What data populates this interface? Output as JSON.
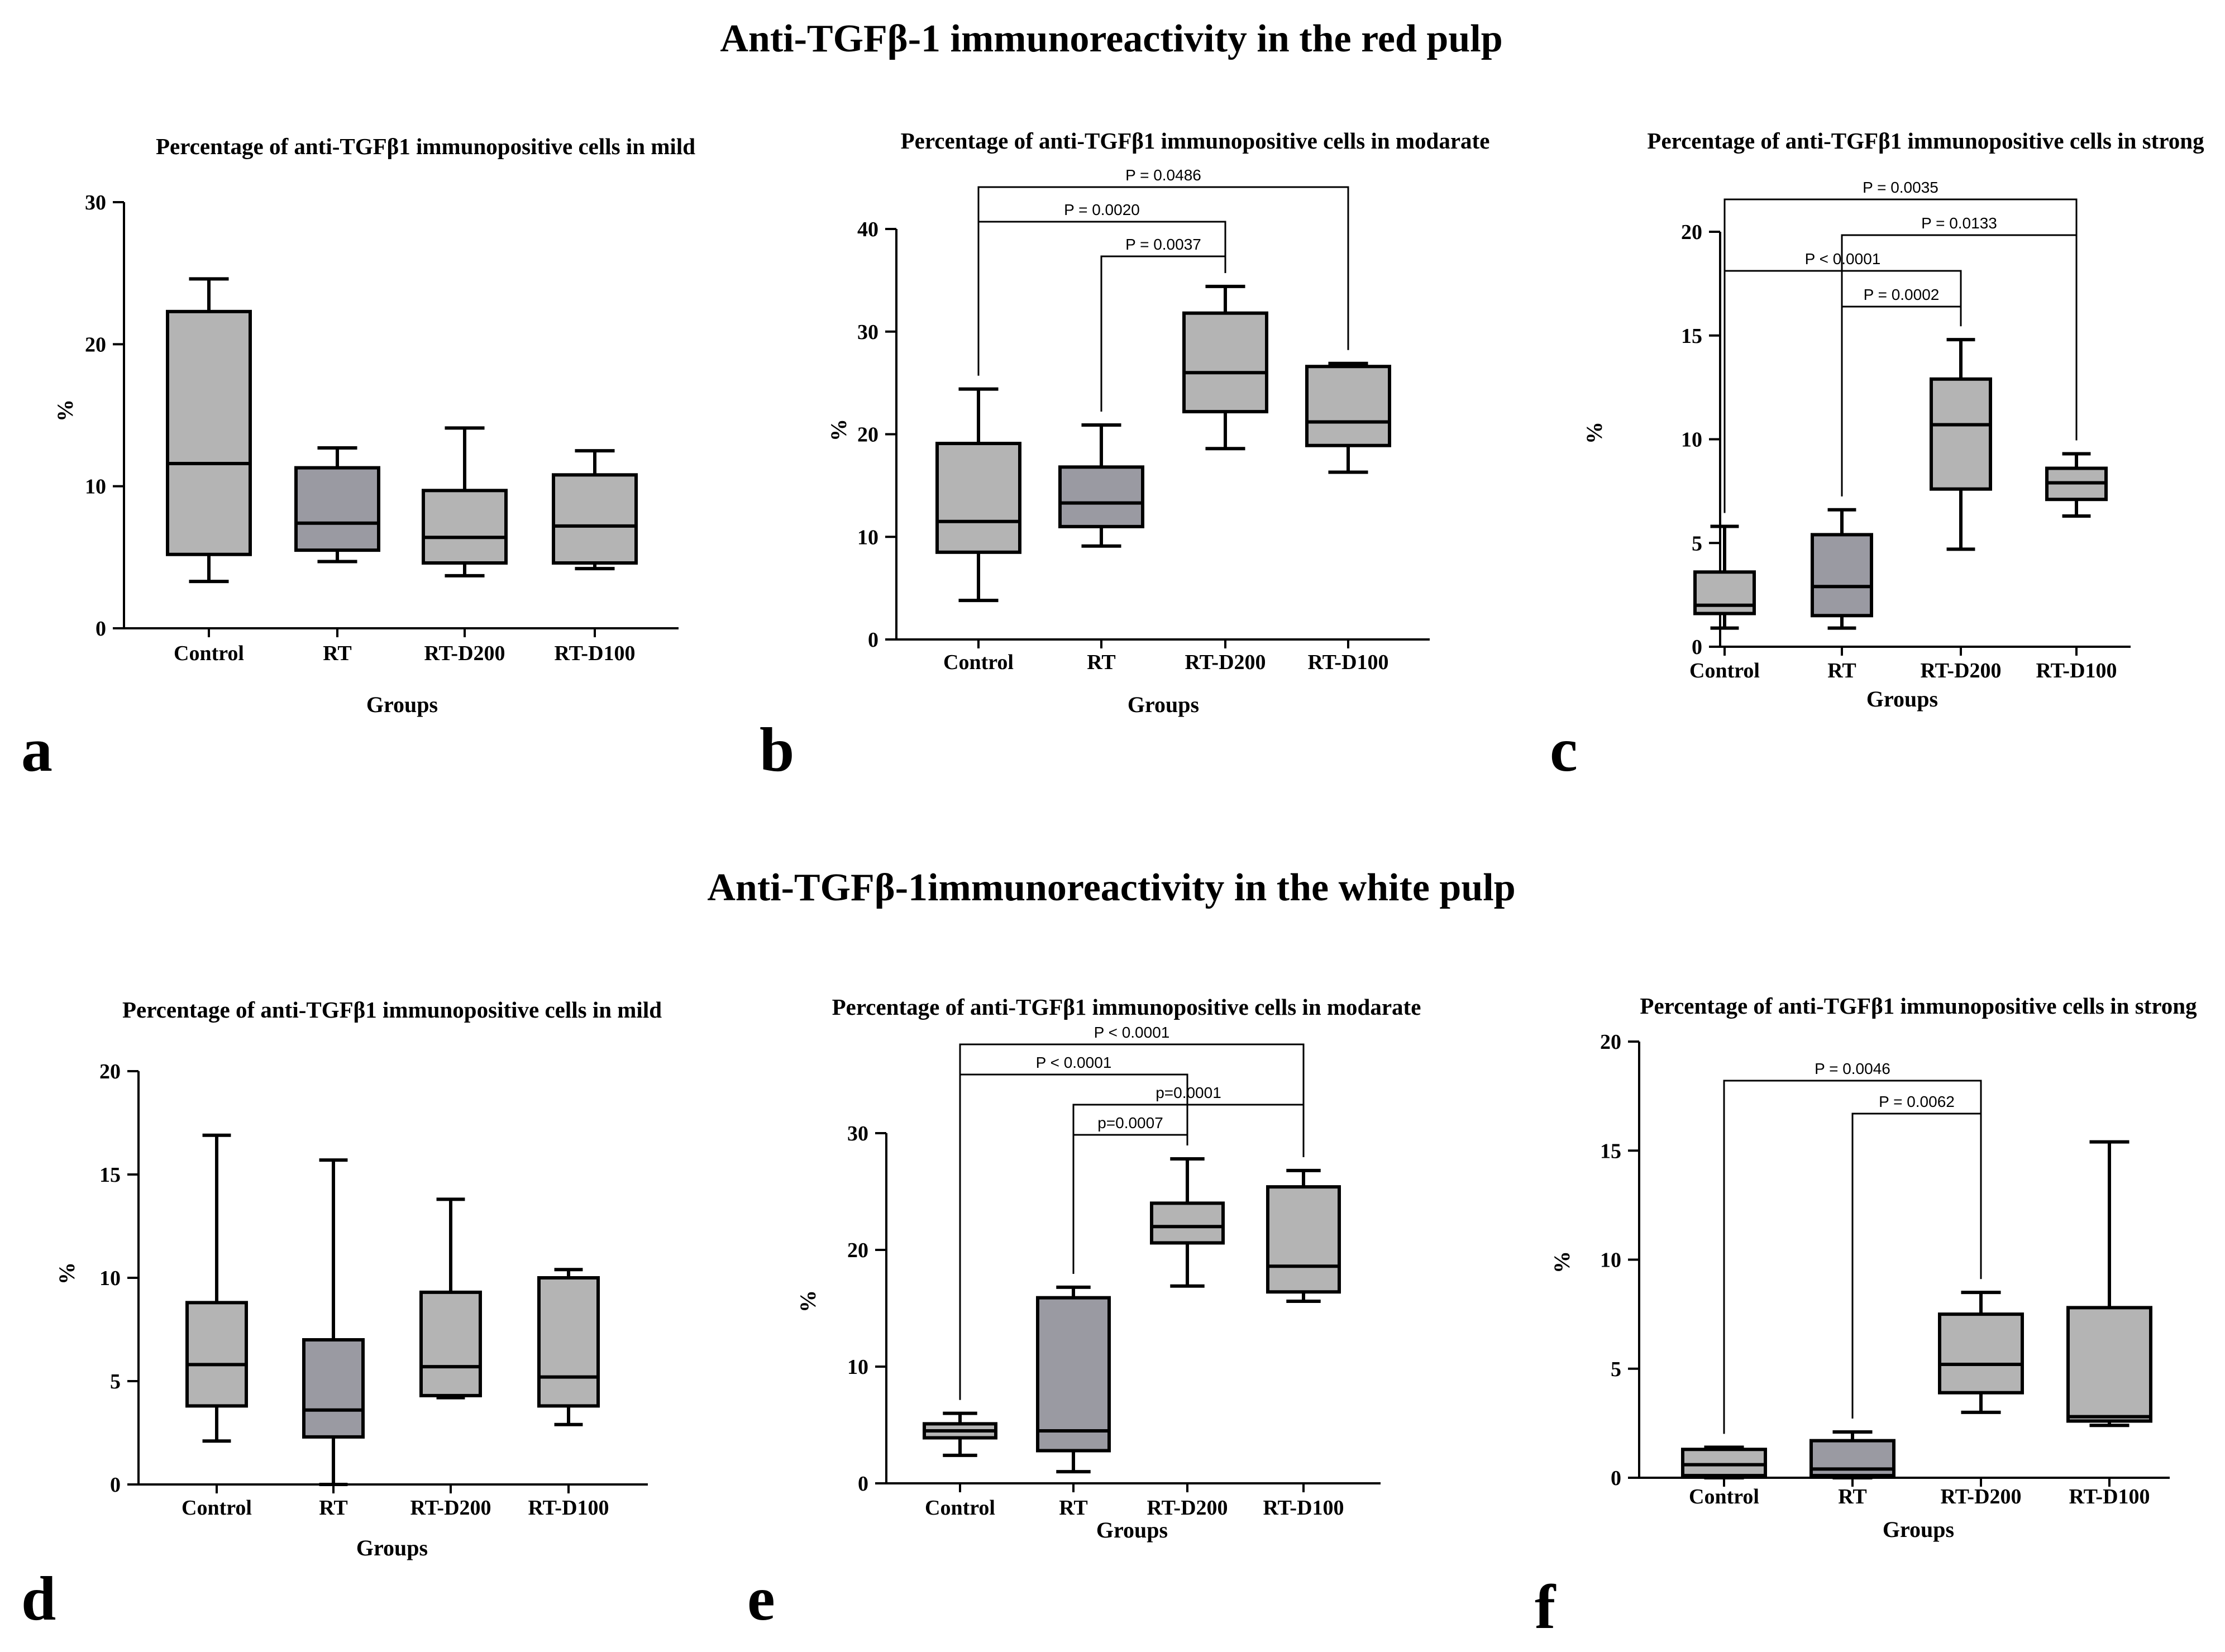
{
  "figure": {
    "section_titles": [
      "Anti-TGFβ-1 immunoreactivity in the red pulp",
      "Anti-TGFβ-1immunoreactivity in the white pulp"
    ]
  },
  "colors": {
    "box_light": "#b4b4b4",
    "box_dark": "#9a9aa2",
    "stroke": "#000000"
  },
  "chart_data": [
    {
      "panel": "a",
      "type": "box",
      "title": "Percentage of anti-TGFβ1 immunopositive cells in mild",
      "xlabel": "Groups",
      "ylabel": "%",
      "ylim": [
        0,
        30
      ],
      "yticks": [
        0,
        10,
        20,
        30
      ],
      "categories": [
        "Control",
        "RT",
        "RT-D200",
        "RT-D100"
      ],
      "boxes": [
        {
          "min": 3.3,
          "q1": 5.2,
          "median": 11.6,
          "q3": 22.3,
          "max": 24.6
        },
        {
          "min": 4.7,
          "q1": 5.5,
          "median": 7.4,
          "q3": 11.3,
          "max": 12.7
        },
        {
          "min": 3.7,
          "q1": 4.6,
          "median": 6.4,
          "q3": 9.7,
          "max": 14.1
        },
        {
          "min": 4.2,
          "q1": 4.6,
          "median": 7.2,
          "q3": 10.8,
          "max": 12.5
        }
      ],
      "comparisons": []
    },
    {
      "panel": "b",
      "type": "box",
      "title": "Percentage of anti-TGFβ1 immunopositive cells in modarate",
      "xlabel": "Groups",
      "ylabel": "%",
      "ylim": [
        0,
        40
      ],
      "yticks": [
        0,
        10,
        20,
        30,
        40
      ],
      "categories": [
        "Control",
        "RT",
        "RT-D200",
        "RT-D100"
      ],
      "boxes": [
        {
          "min": 3.8,
          "q1": 8.5,
          "median": 11.5,
          "q3": 19.1,
          "max": 24.4
        },
        {
          "min": 9.1,
          "q1": 11.0,
          "median": 13.3,
          "q3": 16.8,
          "max": 20.9
        },
        {
          "min": 18.6,
          "q1": 22.2,
          "median": 26.0,
          "q3": 31.8,
          "max": 34.4
        },
        {
          "min": 16.3,
          "q1": 18.9,
          "median": 21.2,
          "q3": 26.6,
          "max": 26.9
        }
      ],
      "comparisons": [
        {
          "from": 0,
          "to": 3,
          "label": "P = 0.0486"
        },
        {
          "from": 0,
          "to": 2,
          "label": "P = 0.0020"
        },
        {
          "from": 1,
          "to": 2,
          "label": "P = 0.0037"
        }
      ]
    },
    {
      "panel": "c",
      "type": "box",
      "title": "Percentage of anti-TGFβ1 immunopositive cells in strong",
      "xlabel": "Groups",
      "ylabel": "%",
      "ylim": [
        0,
        20
      ],
      "yticks": [
        0,
        5,
        10,
        15,
        20
      ],
      "categories": [
        "Control",
        "RT",
        "RT-D200",
        "RT-D100"
      ],
      "boxes": [
        {
          "min": 0.9,
          "q1": 1.6,
          "median": 2.0,
          "q3": 3.6,
          "max": 5.8
        },
        {
          "min": 0.9,
          "q1": 1.5,
          "median": 2.9,
          "q3": 5.4,
          "max": 6.6
        },
        {
          "min": 4.7,
          "q1": 7.6,
          "median": 10.7,
          "q3": 12.9,
          "max": 14.8
        },
        {
          "min": 6.3,
          "q1": 7.1,
          "median": 7.9,
          "q3": 8.6,
          "max": 9.3
        }
      ],
      "comparisons": [
        {
          "from": 0,
          "to": 3,
          "label": "P = 0.0035"
        },
        {
          "from": 1,
          "to": 3,
          "label": "P = 0.0133"
        },
        {
          "from": 0,
          "to": 2,
          "label": "P < 0.0001"
        },
        {
          "from": 1,
          "to": 2,
          "label": "P = 0.0002"
        }
      ]
    },
    {
      "panel": "d",
      "type": "box",
      "title": "Percentage of anti-TGFβ1 immunopositive cells in mild",
      "xlabel": "Groups",
      "ylabel": "%",
      "ylim": [
        0,
        20
      ],
      "yticks": [
        0,
        5,
        10,
        15,
        20
      ],
      "categories": [
        "Control",
        "RT",
        "RT-D200",
        "RT-D100"
      ],
      "boxes": [
        {
          "min": 2.1,
          "q1": 3.8,
          "median": 5.8,
          "q3": 8.8,
          "max": 16.9
        },
        {
          "min": 0.0,
          "q1": 2.3,
          "median": 3.6,
          "q3": 7.0,
          "max": 15.7
        },
        {
          "min": 4.2,
          "q1": 4.3,
          "median": 5.7,
          "q3": 9.3,
          "max": 13.8
        },
        {
          "min": 2.9,
          "q1": 3.8,
          "median": 5.2,
          "q3": 10.0,
          "max": 10.4
        }
      ],
      "comparisons": []
    },
    {
      "panel": "e",
      "type": "box",
      "title": "Percentage of anti-TGFβ1 immunopositive cells in modarate",
      "xlabel": "Groups",
      "ylabel": "%",
      "ylim": [
        0,
        30
      ],
      "yticks": [
        0,
        10,
        20,
        30
      ],
      "categories": [
        "Control",
        "RT",
        "RT-D200",
        "RT-D100"
      ],
      "boxes": [
        {
          "min": 2.4,
          "q1": 3.9,
          "median": 4.5,
          "q3": 5.1,
          "max": 6.0
        },
        {
          "min": 1.0,
          "q1": 2.8,
          "median": 4.5,
          "q3": 15.9,
          "max": 16.8
        },
        {
          "min": 16.9,
          "q1": 20.6,
          "median": 22.0,
          "q3": 24.0,
          "max": 27.8
        },
        {
          "min": 15.6,
          "q1": 16.4,
          "median": 18.6,
          "q3": 25.4,
          "max": 26.8
        }
      ],
      "comparisons": [
        {
          "from": 0,
          "to": 3,
          "label": "P < 0.0001"
        },
        {
          "from": 0,
          "to": 2,
          "label": "P < 0.0001"
        },
        {
          "from": 1,
          "to": 3,
          "label": "p=0.0001"
        },
        {
          "from": 1,
          "to": 2,
          "label": "p=0.0007"
        }
      ]
    },
    {
      "panel": "f",
      "type": "box",
      "title": "Percentage of anti-TGFβ1 immunopositive cells in strong",
      "xlabel": "Groups",
      "ylabel": "%",
      "ylim": [
        0,
        20
      ],
      "yticks": [
        0,
        5,
        10,
        15,
        20
      ],
      "categories": [
        "Control",
        "RT",
        "RT-D200",
        "RT-D100"
      ],
      "boxes": [
        {
          "min": 0.0,
          "q1": 0.1,
          "median": 0.6,
          "q3": 1.3,
          "max": 1.4
        },
        {
          "min": 0.0,
          "q1": 0.1,
          "median": 0.4,
          "q3": 1.7,
          "max": 2.1
        },
        {
          "min": 3.0,
          "q1": 3.9,
          "median": 5.2,
          "q3": 7.5,
          "max": 8.5
        },
        {
          "min": 2.4,
          "q1": 2.6,
          "median": 2.8,
          "q3": 7.8,
          "max": 15.4
        }
      ],
      "comparisons": [
        {
          "from": 0,
          "to": 2,
          "label": "P = 0.0046"
        },
        {
          "from": 1,
          "to": 2,
          "label": "P = 0.0062"
        }
      ]
    }
  ]
}
